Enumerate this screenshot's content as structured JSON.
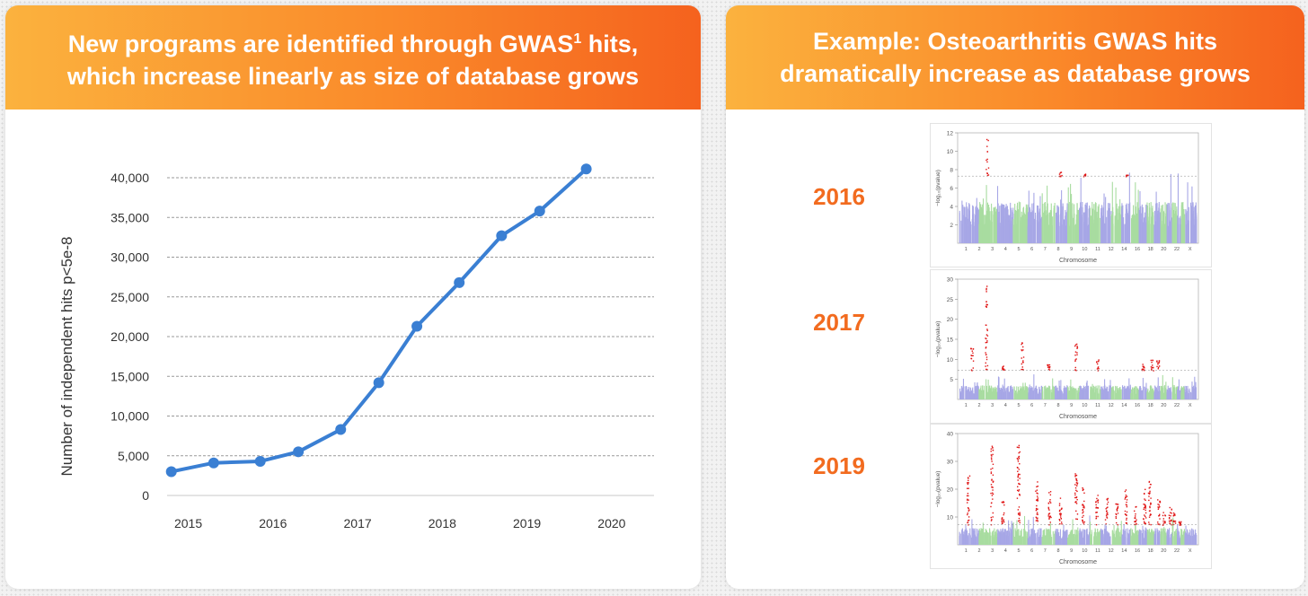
{
  "left_panel": {
    "header_line1_pre": "New programs are identified through GWAS",
    "header_sup": "1",
    "header_line1_post": " hits,",
    "header_line2": "which increase linearly as size of database grows"
  },
  "right_panel": {
    "header_line1": "Example: Osteoarthritis GWAS hits",
    "header_line2": "dramatically increase as database grows",
    "plots": [
      {
        "year": "2016",
        "ymax": 12,
        "threshold": 7.3,
        "yticks": [
          "2",
          "4",
          "6",
          "8",
          "10",
          "12"
        ],
        "ylabel": "−log₁₀(pvalue)",
        "xlabel": "Chromosome"
      },
      {
        "year": "2017",
        "ymax": 30,
        "threshold": 7.3,
        "yticks": [
          "5",
          "10",
          "15",
          "20",
          "25",
          "30"
        ],
        "ylabel": "−log₁₀(pvalue)",
        "xlabel": "Chromosome"
      },
      {
        "year": "2019",
        "ymax": 40,
        "threshold": 7.3,
        "yticks": [
          "10",
          "20",
          "30",
          "40"
        ],
        "ylabel": "−log₁₀(pvalue)",
        "xlabel": "Chromosome"
      }
    ],
    "chromosome_labels": [
      "1",
      "2",
      "3",
      "4",
      "5",
      "6",
      "7",
      "8",
      "9",
      "10",
      "11",
      "12",
      "14",
      "16",
      "18",
      "20",
      "22",
      "X"
    ],
    "colors": {
      "odd": "#a7a7e6",
      "even": "#a8dca0",
      "hit": "#e01515",
      "threshold": "#8c8c8c"
    }
  },
  "chart_data": {
    "type": "line",
    "xlabel": "",
    "ylabel": "Number of independent hits p<5e-8",
    "x_tick_labels": [
      "2015",
      "2016",
      "2017",
      "2018",
      "2019",
      "2020"
    ],
    "y_tick_labels": [
      "0",
      "5,000",
      "10,000",
      "15,000",
      "20,000",
      "25,000",
      "30,000",
      "35,000",
      "40,000"
    ],
    "ylim": [
      0,
      40000
    ],
    "xlim": [
      2014.75,
      2020.5
    ],
    "grid": true,
    "color": "#3a7fd3",
    "x": [
      2014.8,
      2015.3,
      2015.85,
      2016.3,
      2016.8,
      2017.25,
      2017.7,
      2018.2,
      2018.7,
      2019.15,
      2019.7
    ],
    "values": [
      3000,
      4100,
      4300,
      5500,
      8300,
      14200,
      21300,
      26800,
      32700,
      35800,
      41100
    ]
  }
}
